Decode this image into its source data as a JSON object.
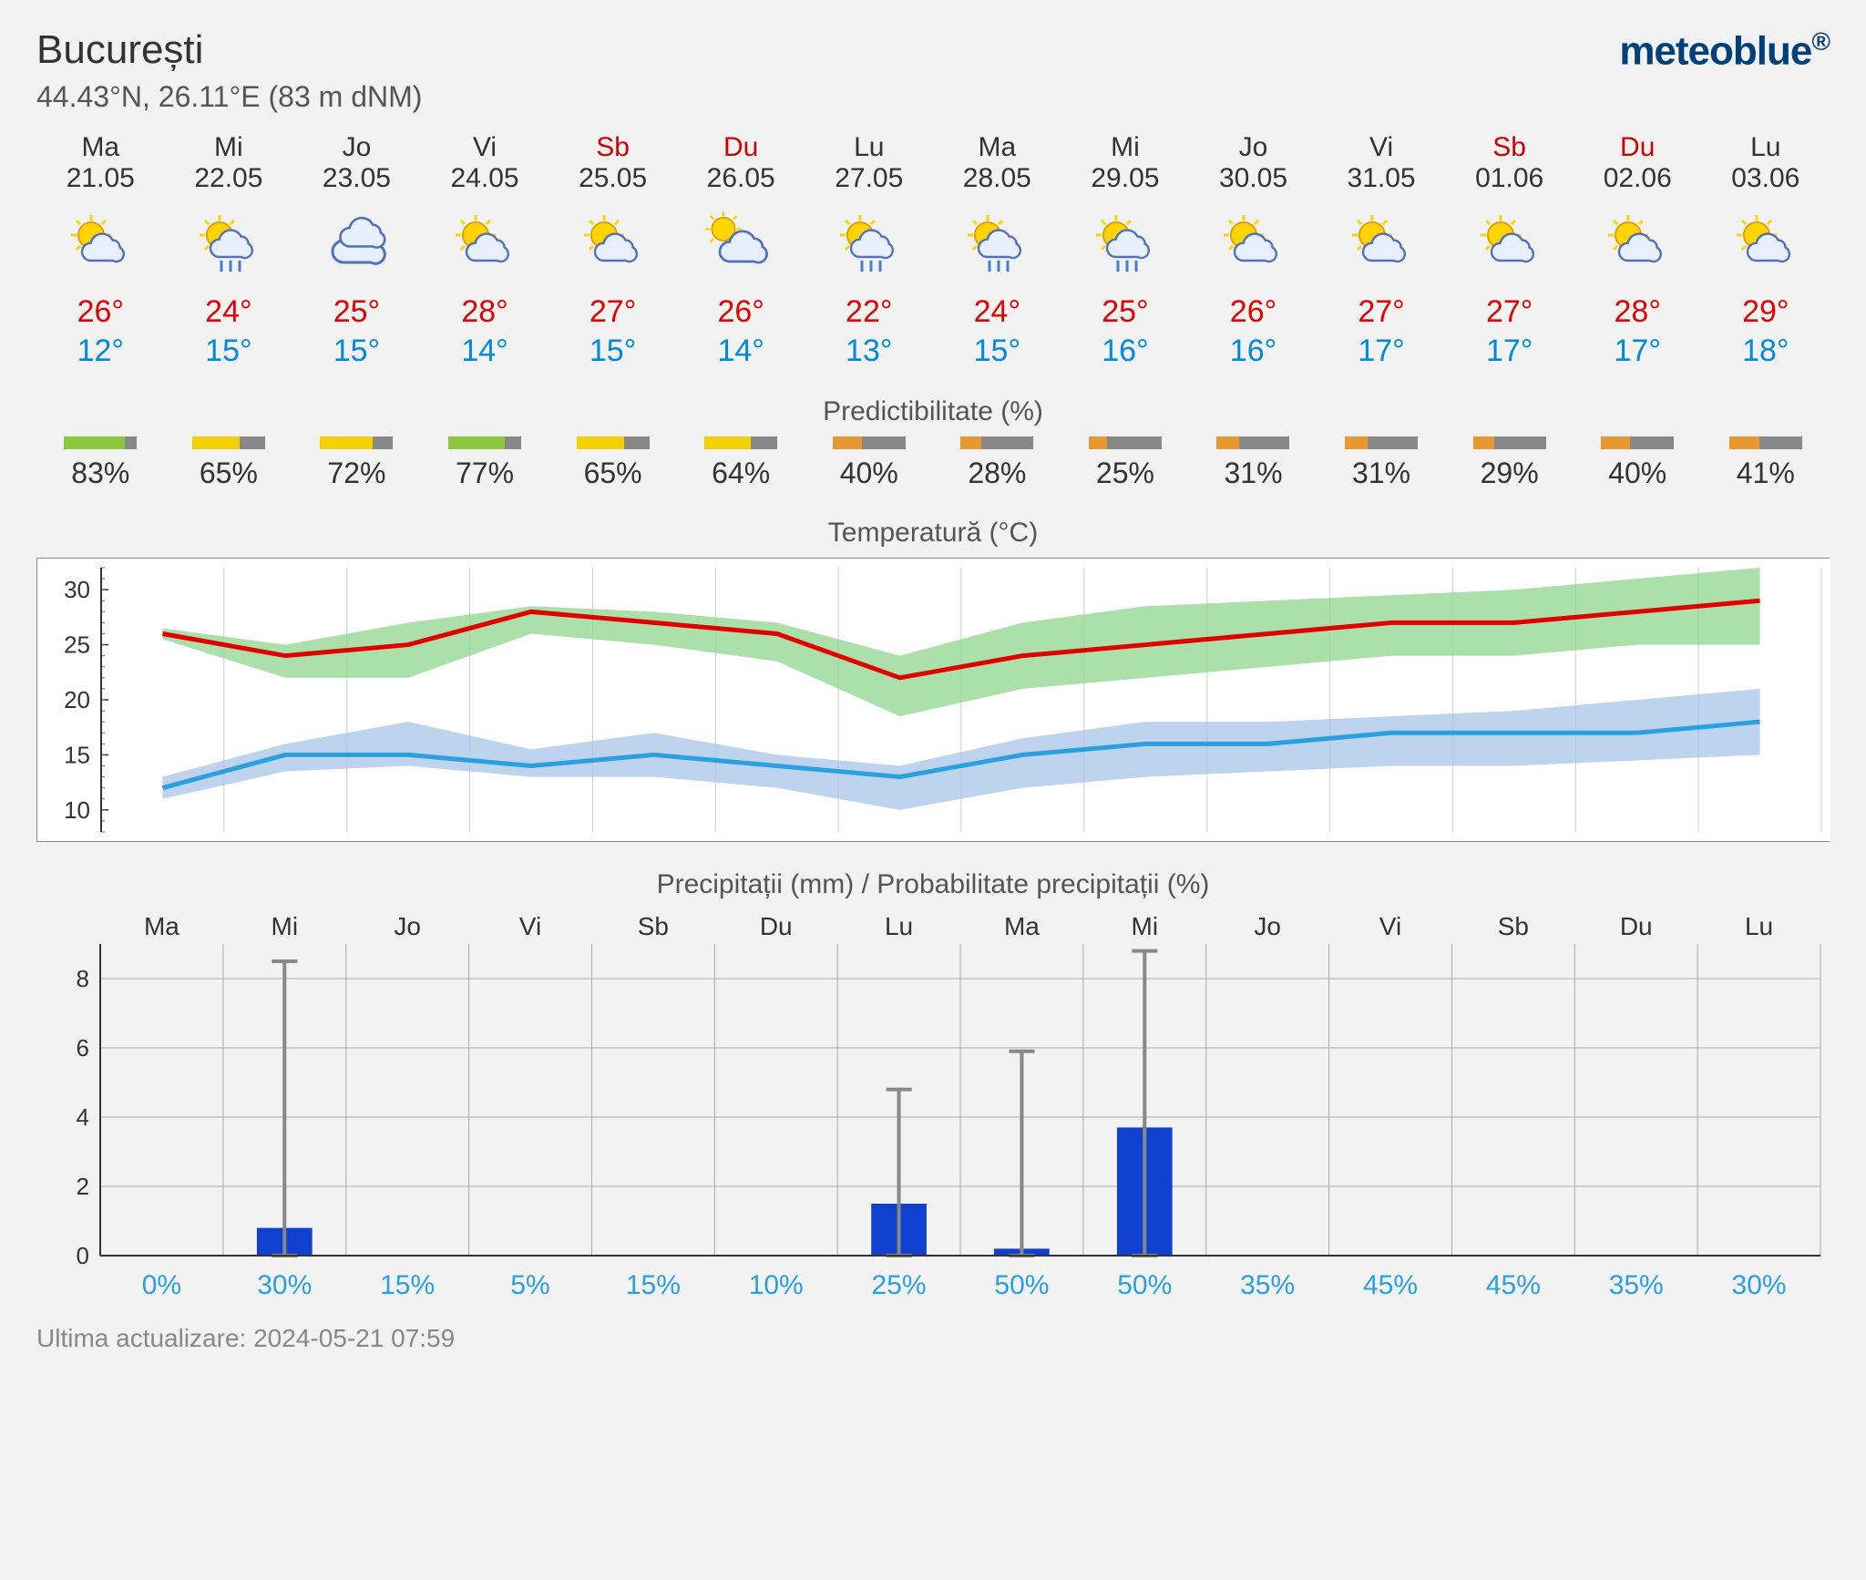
{
  "location": {
    "name": "București",
    "coords": "44.43°N, 26.11°E (83 m dNM)"
  },
  "brand": "meteoblue",
  "days": [
    {
      "dow": "Ma",
      "date": "21.05",
      "weekend": false,
      "icon": "sun_cloud",
      "high": "26°",
      "low": "12°"
    },
    {
      "dow": "Mi",
      "date": "22.05",
      "weekend": false,
      "icon": "sun_rain",
      "high": "24°",
      "low": "15°"
    },
    {
      "dow": "Jo",
      "date": "23.05",
      "weekend": false,
      "icon": "cloud",
      "high": "25°",
      "low": "15°"
    },
    {
      "dow": "Vi",
      "date": "24.05",
      "weekend": false,
      "icon": "sun_cloud",
      "high": "28°",
      "low": "14°"
    },
    {
      "dow": "Sb",
      "date": "25.05",
      "weekend": true,
      "icon": "sun_cloud",
      "high": "27°",
      "low": "15°"
    },
    {
      "dow": "Du",
      "date": "26.05",
      "weekend": true,
      "icon": "cloud_sun",
      "high": "26°",
      "low": "14°"
    },
    {
      "dow": "Lu",
      "date": "27.05",
      "weekend": false,
      "icon": "sun_rain",
      "high": "22°",
      "low": "13°"
    },
    {
      "dow": "Ma",
      "date": "28.05",
      "weekend": false,
      "icon": "sun_rain",
      "high": "24°",
      "low": "15°"
    },
    {
      "dow": "Mi",
      "date": "29.05",
      "weekend": false,
      "icon": "sun_rain",
      "high": "25°",
      "low": "16°"
    },
    {
      "dow": "Jo",
      "date": "30.05",
      "weekend": false,
      "icon": "sun_cloud",
      "high": "26°",
      "low": "16°"
    },
    {
      "dow": "Vi",
      "date": "31.05",
      "weekend": false,
      "icon": "sun_cloud",
      "high": "27°",
      "low": "17°"
    },
    {
      "dow": "Sb",
      "date": "01.06",
      "weekend": true,
      "icon": "sun_cloud",
      "high": "27°",
      "low": "17°"
    },
    {
      "dow": "Du",
      "date": "02.06",
      "weekend": true,
      "icon": "sun_cloud",
      "high": "28°",
      "low": "17°"
    },
    {
      "dow": "Lu",
      "date": "03.06",
      "weekend": false,
      "icon": "sun_cloud",
      "high": "29°",
      "low": "18°"
    }
  ],
  "predictability": {
    "title": "Predictibilitate (%)",
    "colors": {
      "high": "#8cc63f",
      "mid": "#f5d000",
      "low": "#e89830"
    },
    "values": [
      {
        "pct": 83,
        "band": "high"
      },
      {
        "pct": 65,
        "band": "mid"
      },
      {
        "pct": 72,
        "band": "mid"
      },
      {
        "pct": 77,
        "band": "high"
      },
      {
        "pct": 65,
        "band": "mid"
      },
      {
        "pct": 64,
        "band": "mid"
      },
      {
        "pct": 40,
        "band": "low"
      },
      {
        "pct": 28,
        "band": "low"
      },
      {
        "pct": 25,
        "band": "low"
      },
      {
        "pct": 31,
        "band": "low"
      },
      {
        "pct": 31,
        "band": "low"
      },
      {
        "pct": 29,
        "band": "low"
      },
      {
        "pct": 40,
        "band": "low"
      },
      {
        "pct": 41,
        "band": "low"
      }
    ]
  },
  "temp_chart": {
    "title": "Temperatură (°C)",
    "ylim": [
      8,
      32
    ],
    "yticks": [
      10,
      15,
      20,
      25,
      30
    ],
    "x_count": 14,
    "high_line": [
      26,
      24,
      25,
      28,
      27,
      26,
      22,
      24,
      25,
      26,
      27,
      27,
      28,
      29
    ],
    "high_band_up": [
      26.5,
      25,
      27,
      28.5,
      28,
      27,
      24,
      27,
      28.5,
      29,
      29.5,
      30,
      31,
      32
    ],
    "high_band_dn": [
      25.5,
      22,
      22,
      26,
      25,
      23.5,
      18.5,
      21,
      22,
      23,
      24,
      24,
      25,
      25
    ],
    "low_line": [
      12,
      15,
      15,
      14,
      15,
      14,
      13,
      15,
      16,
      16,
      17,
      17,
      17,
      18
    ],
    "low_band_up": [
      13,
      16,
      18,
      15.5,
      17,
      15,
      14,
      16.5,
      18,
      18,
      18.5,
      19,
      20,
      21
    ],
    "low_band_dn": [
      11,
      13.5,
      14,
      13,
      13,
      12,
      10,
      12,
      13,
      13.5,
      14,
      14,
      14.5,
      15
    ],
    "colors": {
      "high_line": "#e00000",
      "high_band": "#8fd68f",
      "low_line": "#2aa0e0",
      "low_band": "#a8c4e8",
      "grid": "#999999",
      "bg": "#ffffff"
    }
  },
  "precip_chart": {
    "title": "Precipitații (mm) / Probabilitate precipitații (%)",
    "ylim": [
      0,
      9
    ],
    "yticks": [
      0,
      2,
      4,
      6,
      8
    ],
    "x_labels": [
      "Ma",
      "Mi",
      "Jo",
      "Vi",
      "Sb",
      "Du",
      "Lu",
      "Ma",
      "Mi",
      "Jo",
      "Vi",
      "Sb",
      "Du",
      "Lu"
    ],
    "x_count": 14,
    "bars": [
      0,
      0.8,
      0,
      0,
      0,
      0,
      1.5,
      0.2,
      3.7,
      0,
      0,
      0,
      0,
      0
    ],
    "err_hi": [
      0,
      8.5,
      0,
      0,
      0,
      0,
      4.8,
      5.9,
      8.8,
      0,
      0,
      0,
      0,
      0
    ],
    "prob": [
      "0%",
      "30%",
      "15%",
      "5%",
      "15%",
      "10%",
      "25%",
      "50%",
      "50%",
      "35%",
      "45%",
      "45%",
      "35%",
      "30%"
    ],
    "colors": {
      "bar": "#1040d0",
      "grid": "#aaaaaa",
      "err": "#888888",
      "prob": "#2aa0e0",
      "axis": "#333333"
    }
  },
  "footer": "Ultima actualizare: 2024-05-21 07:59"
}
